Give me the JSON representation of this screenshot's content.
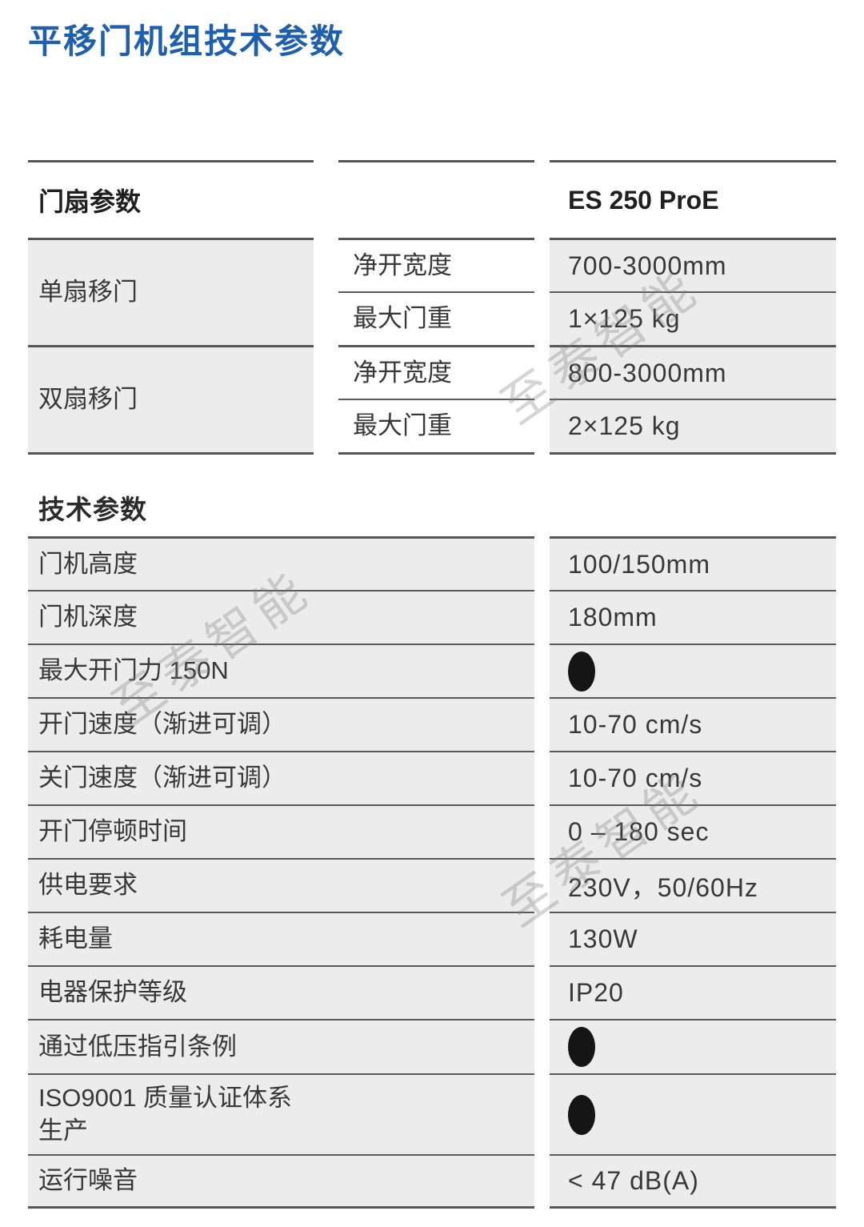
{
  "title": "平移门机组技术参数",
  "colors": {
    "title_blue": "#1e5fae",
    "cell_gray": "#ececec",
    "line_dark": "#555555",
    "text_dark": "#383838",
    "dot_black": "#151515",
    "watermark_gray": "#7d7d7d"
  },
  "watermark": {
    "text": "至泰智能"
  },
  "leaf_table": {
    "header": {
      "param_label": "门扇参数",
      "model_label": "ES 250 ProE"
    },
    "groups": [
      {
        "label": "单扇移门",
        "rows": [
          {
            "param": "净开宽度",
            "value": "700-3000mm"
          },
          {
            "param": "最大门重",
            "value": "1×125 kg"
          }
        ]
      },
      {
        "label": "双扇移门",
        "rows": [
          {
            "param": "净开宽度",
            "value": "800-3000mm"
          },
          {
            "param": "最大门重",
            "value": "2×125 kg"
          }
        ]
      }
    ]
  },
  "tech_table": {
    "title": "技术参数",
    "rows": [
      {
        "label": "门机高度",
        "value": "100/150mm"
      },
      {
        "label": "门机深度",
        "value": "180mm"
      },
      {
        "label": "最大开门力 150N",
        "value": "",
        "dot": true
      },
      {
        "label": "开门速度（渐进可调）",
        "value": "10-70 cm/s"
      },
      {
        "label": "关门速度（渐进可调）",
        "value": "10-70 cm/s"
      },
      {
        "label": "开门停顿时间",
        "value": "0 – 180 sec"
      },
      {
        "label": "供电要求",
        "value": "230V，50/60Hz"
      },
      {
        "label": "耗电量",
        "value": "130W"
      },
      {
        "label": "电器保护等级",
        "value": "IP20"
      },
      {
        "label": "通过低压指引条例",
        "value": "",
        "dot": true
      },
      {
        "label": "ISO9001 质量认证体系\n生产",
        "value": "",
        "dot": true
      },
      {
        "label": "运行噪音",
        "value": "< 47 dB(A)"
      }
    ]
  }
}
